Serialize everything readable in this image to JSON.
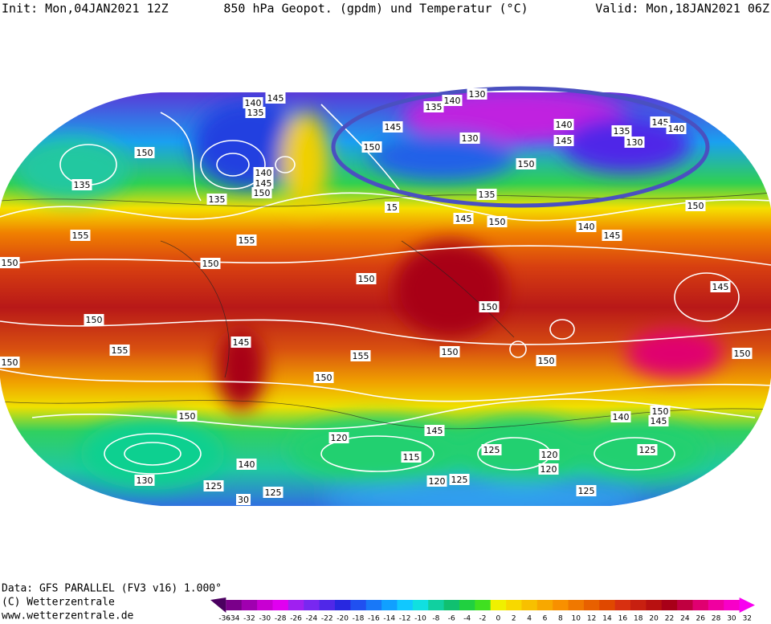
{
  "header": {
    "init": "Init: Mon,04JAN2021 12Z",
    "title": "850 hPa Geopot. (gpdm) und Temperatur (°C)",
    "valid": "Valid: Mon,18JAN2021 06Z"
  },
  "footer": {
    "data": "Data: GFS PARALLEL (FV3 v16) 1.000°",
    "copyright": "(C) Wetterzentrale",
    "url": "www.wetterzentrale.de"
  },
  "scale": {
    "labels": [
      -36,
      -34,
      -32,
      -30,
      -28,
      -26,
      -24,
      -22,
      -20,
      -18,
      -16,
      -14,
      -12,
      -10,
      -8,
      -6,
      -4,
      -2,
      0,
      2,
      4,
      6,
      8,
      10,
      12,
      14,
      16,
      18,
      20,
      22,
      24,
      26,
      28,
      30,
      32
    ],
    "colors": [
      "#4b0060",
      "#7a008a",
      "#a000b0",
      "#c800d2",
      "#e000f0",
      "#a020f0",
      "#7828f0",
      "#5028e8",
      "#2828e0",
      "#2050f0",
      "#1878f8",
      "#10a0ff",
      "#10c8ff",
      "#10e0e0",
      "#10d0a0",
      "#10c070",
      "#20d040",
      "#40e020",
      "#f0f000",
      "#f8d800",
      "#f8c000",
      "#f8a800",
      "#f89000",
      "#f07800",
      "#e86000",
      "#e04800",
      "#d83010",
      "#c82010",
      "#b81010",
      "#a80018",
      "#c00040",
      "#e00070",
      "#f000a0",
      "#f800c8",
      "#f800f0"
    ]
  },
  "map": {
    "labels": [
      "140",
      "145",
      "135",
      "135",
      "140",
      "130",
      "145",
      "150",
      "130",
      "140",
      "145",
      "150",
      "135",
      "130",
      "145",
      "140",
      "135",
      "140",
      "145",
      "150",
      "135",
      "135",
      "150",
      "155",
      "155",
      "150",
      "150",
      "150",
      "145",
      "150",
      "155",
      "150",
      "155",
      "150",
      "150",
      "150",
      "150",
      "145",
      "150",
      "140",
      "145",
      "150",
      "150",
      "145",
      "15",
      "150",
      "120",
      "145",
      "125",
      "120",
      "120",
      "120",
      "125",
      "125",
      "140",
      "150",
      "145",
      "125",
      "140",
      "125",
      "125",
      "130",
      "30",
      "115"
    ]
  }
}
